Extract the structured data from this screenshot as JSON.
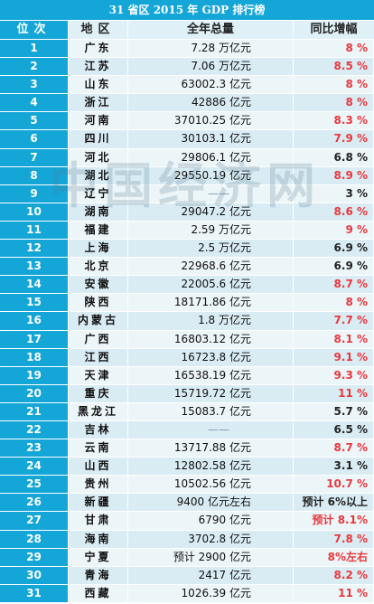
{
  "title": "31 省区 2015 年 GDP 排行榜",
  "headers": {
    "rank": "位次",
    "province": "地区",
    "gdp": "全年总量",
    "growth": "同比增幅"
  },
  "watermark": "中国经济网",
  "colors": {
    "header_blue": "#15a6d8",
    "red": "#e8383d",
    "dark": "#222222",
    "row_light": "#ecf5f8",
    "row_dark": "#d9ecf3"
  },
  "rows": [
    {
      "rank": "1",
      "province": "广东",
      "gdp": "7.28 万亿元",
      "growth": "8 %",
      "growth_color": "red"
    },
    {
      "rank": "2",
      "province": "江苏",
      "gdp": "7.06 万亿元",
      "growth": "8.5 %",
      "growth_color": "red"
    },
    {
      "rank": "3",
      "province": "山东",
      "gdp": "63002.3 亿元",
      "growth": "8 %",
      "growth_color": "red"
    },
    {
      "rank": "4",
      "province": "浙江",
      "gdp": "42886 亿元",
      "growth": "8 %",
      "growth_color": "red"
    },
    {
      "rank": "5",
      "province": "河南",
      "gdp": "37010.25 亿元",
      "growth": "8.3 %",
      "growth_color": "red"
    },
    {
      "rank": "6",
      "province": "四川",
      "gdp": "30103.1 亿元",
      "growth": "7.9 %",
      "growth_color": "red"
    },
    {
      "rank": "7",
      "province": "河北",
      "gdp": "29806.1 亿元",
      "growth": "6.8 %",
      "growth_color": "dark"
    },
    {
      "rank": "8",
      "province": "湖北",
      "gdp": "29550.19 亿元",
      "growth": "8.9 %",
      "growth_color": "red"
    },
    {
      "rank": "9",
      "province": "辽宁",
      "gdp": "——",
      "growth": "3 %",
      "growth_color": "dark"
    },
    {
      "rank": "10",
      "province": "湖南",
      "gdp": "29047.2 亿元",
      "growth": "8.6 %",
      "growth_color": "red"
    },
    {
      "rank": "11",
      "province": "福建",
      "gdp": "2.59 万亿元",
      "growth": "9 %",
      "growth_color": "red"
    },
    {
      "rank": "12",
      "province": "上海",
      "gdp": "2.5 万亿元",
      "growth": "6.9 %",
      "growth_color": "dark"
    },
    {
      "rank": "13",
      "province": "北京",
      "gdp": "22968.6 亿元",
      "growth": "6.9 %",
      "growth_color": "dark"
    },
    {
      "rank": "14",
      "province": "安徽",
      "gdp": "22005.6 亿元",
      "growth": "8.7 %",
      "growth_color": "red"
    },
    {
      "rank": "15",
      "province": "陕西",
      "gdp": "18171.86 亿元",
      "growth": "8 %",
      "growth_color": "red"
    },
    {
      "rank": "16",
      "province": "内蒙古",
      "gdp": "1.8 万亿元",
      "growth": "7.7 %",
      "growth_color": "red"
    },
    {
      "rank": "17",
      "province": "广西",
      "gdp": "16803.12 亿元",
      "growth": "8.1 %",
      "growth_color": "red"
    },
    {
      "rank": "18",
      "province": "江西",
      "gdp": "16723.8 亿元",
      "growth": "9.1 %",
      "growth_color": "red"
    },
    {
      "rank": "19",
      "province": "天津",
      "gdp": "16538.19 亿元",
      "growth": "9.3 %",
      "growth_color": "red"
    },
    {
      "rank": "20",
      "province": "重庆",
      "gdp": "15719.72 亿元",
      "growth": "11 %",
      "growth_color": "red"
    },
    {
      "rank": "21",
      "province": "黑龙江",
      "gdp": "15083.7 亿元",
      "growth": "5.7 %",
      "growth_color": "dark"
    },
    {
      "rank": "22",
      "province": "吉林",
      "gdp": "——",
      "growth": "6.5 %",
      "growth_color": "dark"
    },
    {
      "rank": "23",
      "province": "云南",
      "gdp": "13717.88 亿元",
      "growth": "8.7 %",
      "growth_color": "red"
    },
    {
      "rank": "24",
      "province": "山西",
      "gdp": "12802.58 亿元",
      "growth": "3.1 %",
      "growth_color": "dark"
    },
    {
      "rank": "25",
      "province": "贵州",
      "gdp": "10502.56 亿元",
      "growth": "10.7 %",
      "growth_color": "red"
    },
    {
      "rank": "26",
      "province": "新疆",
      "gdp": "9400 亿元左右",
      "growth": "预计 6%以上",
      "growth_color": "dark"
    },
    {
      "rank": "27",
      "province": "甘肃",
      "gdp": "6790 亿元",
      "growth": "预计 8.1%",
      "growth_color": "red"
    },
    {
      "rank": "28",
      "province": "海南",
      "gdp": "3702.8 亿元",
      "growth": "7.8 %",
      "growth_color": "red"
    },
    {
      "rank": "29",
      "province": "宁夏",
      "gdp": "预计 2900 亿元",
      "growth": "8%左右",
      "growth_color": "red"
    },
    {
      "rank": "30",
      "province": "青海",
      "gdp": "2417 亿元",
      "growth": "8.2 %",
      "growth_color": "red"
    },
    {
      "rank": "31",
      "province": "西藏",
      "gdp": "1026.39 亿元",
      "growth": "11 %",
      "growth_color": "red"
    }
  ]
}
